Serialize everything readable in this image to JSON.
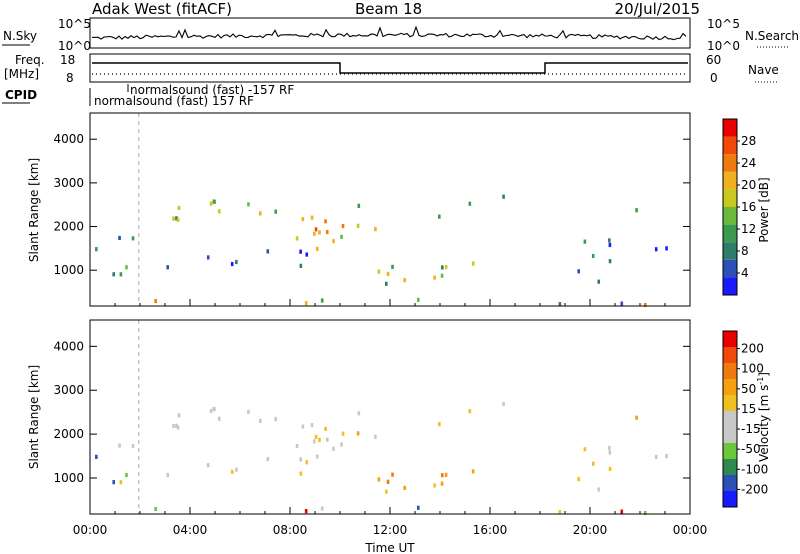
{
  "header": {
    "radar": "Adak West (fitACF)",
    "beam": "Beam 18",
    "date": "20/Jul/2015"
  },
  "noise_panel": {
    "left_label": "N.Sky",
    "right_label": "N.Search",
    "left_ticks": [
      "10^5",
      "10^0"
    ],
    "right_ticks": [
      "10^5",
      "10^0"
    ]
  },
  "freq_panel": {
    "left_label_1": "Freq.",
    "left_label_2": "[MHz]",
    "right_label": "Nave",
    "left_ticks": [
      "18",
      "8"
    ],
    "right_ticks": [
      "60",
      "0"
    ]
  },
  "cpid_panel": {
    "label": "CPID",
    "line1": "normalsound (fast) -157 RF",
    "line2": "normalsound (fast) 157 RF"
  },
  "colors": {
    "scale_palette": [
      "#1a1aff",
      "#2d4fb8",
      "#2e7d6a",
      "#3a9a50",
      "#6cb83a",
      "#c8c820",
      "#f0b020",
      "#f07a10",
      "#f04a0a",
      "#e80000"
    ],
    "velocity_palette": [
      "#e80000",
      "#f04a0a",
      "#f07a10",
      "#f5a010",
      "#f0c020",
      "#c8c8c8",
      "#c8c8c8",
      "#6cc83a",
      "#2e8a50",
      "#2d4fb8",
      "#1a1aff"
    ]
  },
  "chart_data": [
    {
      "type": "heatmap",
      "title": "",
      "ylabel": "Slant Range [km]",
      "ylim": [
        180,
        4600
      ],
      "yticks": [
        1000,
        2000,
        3000,
        4000
      ],
      "xlim": [
        0,
        24
      ],
      "colorbar": {
        "label": "Power [dB]",
        "range": [
          0,
          32
        ],
        "tick_labels": [
          "4",
          "8",
          "12",
          "16",
          "20",
          "24",
          "28"
        ],
        "tick_values": [
          4,
          8,
          12,
          16,
          20,
          24,
          28
        ]
      }
    },
    {
      "type": "heatmap",
      "title": "",
      "ylabel": "Slant Range [km]",
      "ylim": [
        180,
        4600
      ],
      "yticks": [
        1000,
        2000,
        3000,
        4000
      ],
      "xlim": [
        0,
        24
      ],
      "xlabel": "Time UT",
      "xtick_labels": [
        "00:00",
        "04:00",
        "08:00",
        "12:00",
        "16:00",
        "20:00",
        "00:00"
      ],
      "xtick_values": [
        0,
        4,
        8,
        12,
        16,
        20,
        24
      ],
      "colorbar": {
        "label": "Velocity [m s",
        "label_sup": "-1",
        "label_end": "]",
        "tick_labels": [
          "200",
          "100",
          "50",
          "15",
          "-15",
          "-50",
          "-100",
          "-200"
        ]
      }
    }
  ]
}
